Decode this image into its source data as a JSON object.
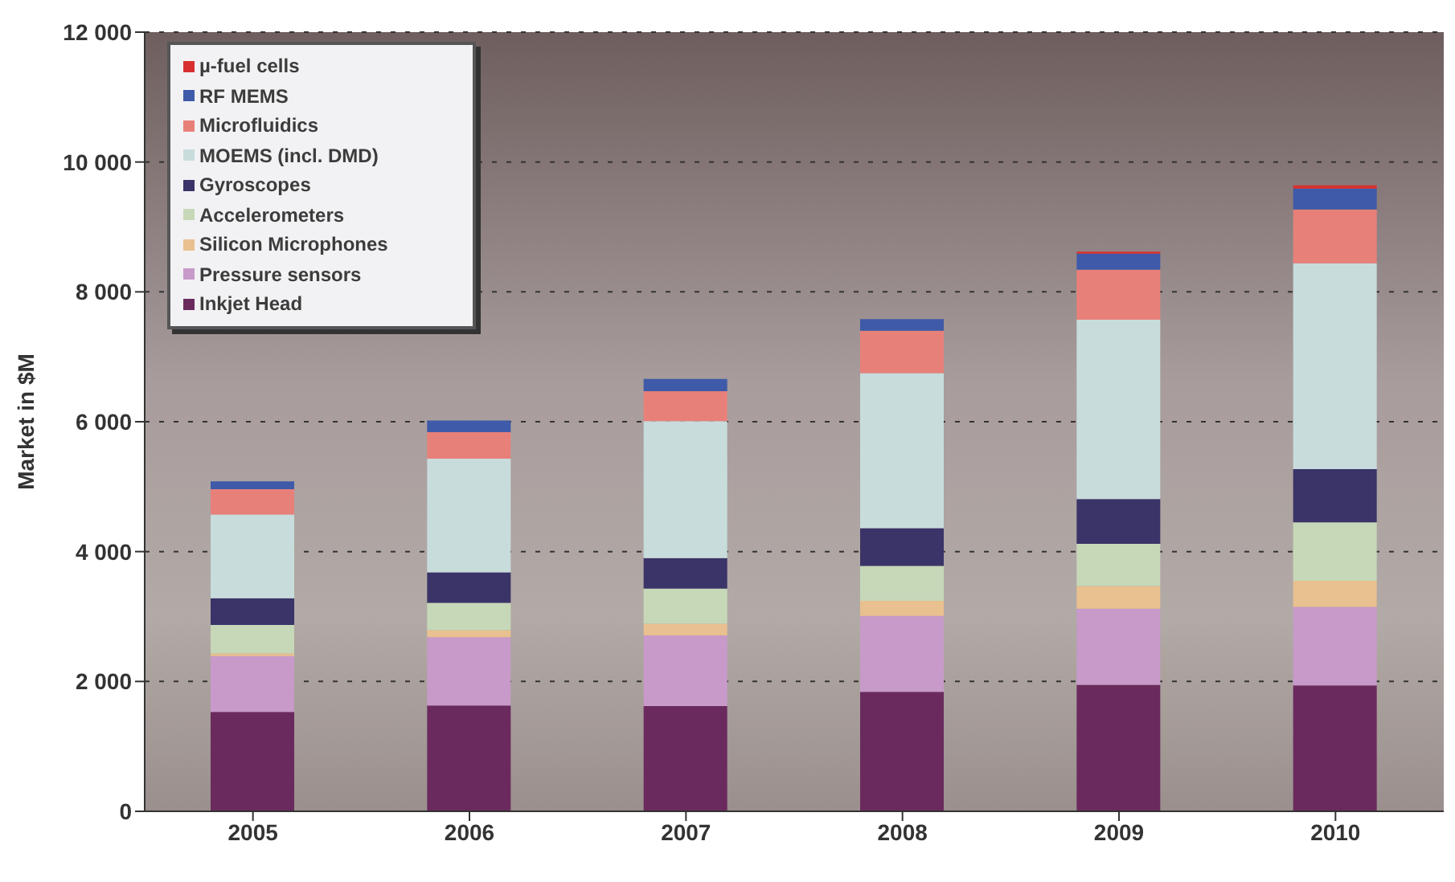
{
  "chart_data": {
    "type": "bar",
    "stacked": true,
    "ylabel": "Market in $M",
    "categories": [
      "2005",
      "2006",
      "2007",
      "2008",
      "2009",
      "2010"
    ],
    "series": [
      {
        "name": "Inkjet Head",
        "color": "#6b2a5e",
        "values": [
          1530,
          1630,
          1620,
          1840,
          1950,
          1940
        ]
      },
      {
        "name": "Pressure sensors",
        "color": "#c79ac9",
        "values": [
          860,
          1050,
          1090,
          1170,
          1170,
          1210
        ]
      },
      {
        "name": "Silicon Microphones",
        "color": "#e9c08f",
        "values": [
          40,
          110,
          180,
          230,
          350,
          400
        ]
      },
      {
        "name": "Accelerometers",
        "color": "#c6d8b8",
        "values": [
          440,
          420,
          540,
          540,
          650,
          900
        ]
      },
      {
        "name": "Gyroscopes",
        "color": "#3a3468",
        "values": [
          410,
          470,
          470,
          580,
          690,
          820
        ]
      },
      {
        "name": "MOEMS (incl. DMD)",
        "color": "#c8dcdc",
        "values": [
          1290,
          1750,
          2110,
          2390,
          2760,
          3170
        ]
      },
      {
        "name": "Microfluidics",
        "color": "#e8807a",
        "values": [
          390,
          410,
          460,
          650,
          770,
          830
        ]
      },
      {
        "name": "RF MEMS",
        "color": "#3e5aa8",
        "values": [
          120,
          180,
          190,
          180,
          250,
          320
        ]
      },
      {
        "name": "µ-fuel cells",
        "color": "#d83030",
        "values": [
          0,
          0,
          0,
          0,
          30,
          50
        ]
      }
    ],
    "ylim": [
      0,
      12000
    ],
    "yticks": [
      0,
      {
        "value": 2000,
        "label": "2 000"
      },
      {
        "value": 4000,
        "label": "4 000"
      },
      {
        "value": 6000,
        "label": "6 000"
      },
      {
        "value": 8000,
        "label": "8 000"
      },
      {
        "value": 10000,
        "label": "10 000"
      },
      {
        "value": 12000,
        "label": "12 000"
      }
    ],
    "grid": "y",
    "legend": "top left"
  }
}
